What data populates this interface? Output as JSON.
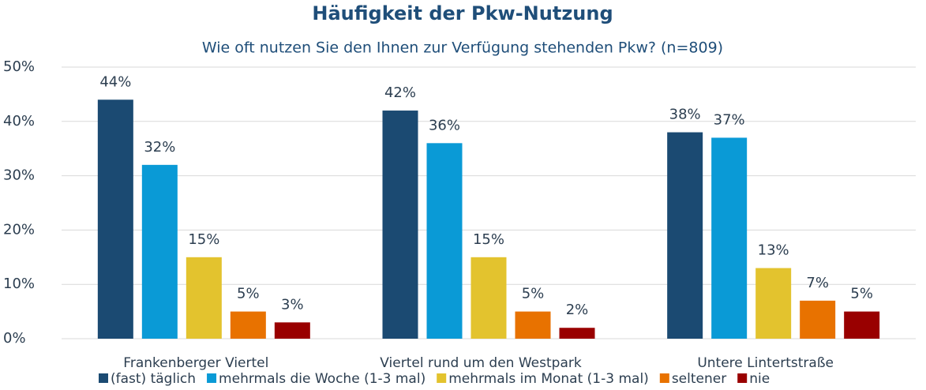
{
  "chart_data": {
    "type": "bar",
    "title": "Häufigkeit der Pkw-Nutzung",
    "subtitle": "Wie oft nutzen Sie den Ihnen zur Verfügung stehenden Pkw? (n=809)",
    "categories": [
      "Frankenberger Viertel",
      "Viertel rund um den Westpark",
      "Untere Lintertstraße"
    ],
    "series": [
      {
        "name": "(fast) täglich",
        "color": "#1b4a72",
        "values": [
          44,
          42,
          38
        ],
        "value_labels": [
          "44%",
          "42%",
          "38%"
        ]
      },
      {
        "name": "mehrmals die Woche (1-3 mal)",
        "color": "#0a9ad6",
        "values": [
          32,
          36,
          37
        ],
        "value_labels": [
          "32%",
          "36%",
          "37%"
        ]
      },
      {
        "name": "mehrmals im Monat (1-3 mal)",
        "color": "#e3c32e",
        "values": [
          15,
          15,
          13
        ],
        "value_labels": [
          "15%",
          "15%",
          "13%"
        ]
      },
      {
        "name": "seltener",
        "color": "#e87200",
        "values": [
          5,
          5,
          7
        ],
        "value_labels": [
          "5%",
          "5%",
          "7%"
        ]
      },
      {
        "name": "nie",
        "color": "#990000",
        "values": [
          3,
          2,
          5
        ],
        "value_labels": [
          "3%",
          "2%",
          "5%"
        ]
      }
    ],
    "ylim": [
      0,
      50
    ],
    "yticks": [
      {
        "value": 0,
        "label": "0%"
      },
      {
        "value": 10,
        "label": "10%"
      },
      {
        "value": 20,
        "label": "20%"
      },
      {
        "value": 30,
        "label": "30%"
      },
      {
        "value": 40,
        "label": "40%"
      },
      {
        "value": 50,
        "label": "50%"
      }
    ],
    "grid": true,
    "legend": "bottom"
  }
}
